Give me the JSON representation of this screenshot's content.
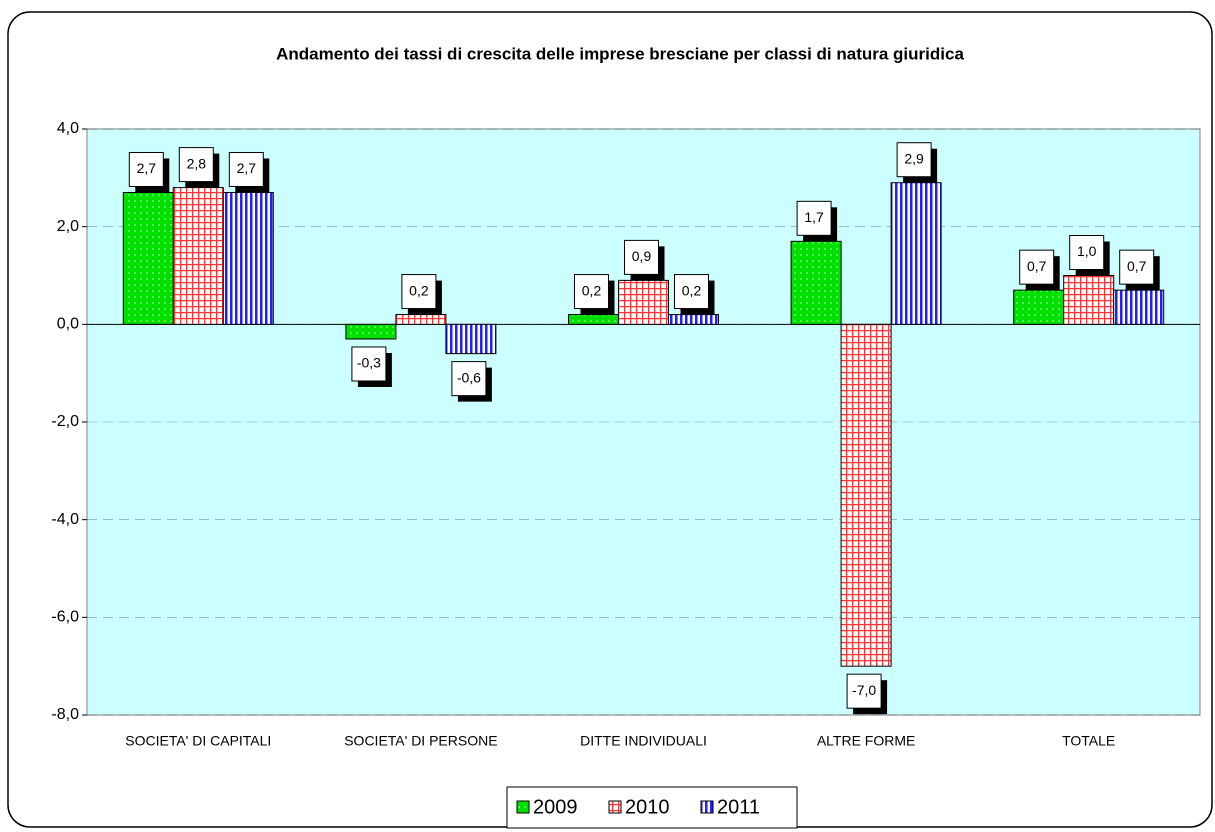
{
  "chart_data": {
    "type": "bar",
    "title": "Andamento dei tassi di crescita delle imprese bresciane per classi di natura giuridica",
    "categories": [
      "SOCIETA' DI CAPITALI",
      "SOCIETA' DI PERSONE",
      "DITTE INDIVIDUALI",
      "ALTRE FORME",
      "TOTALE"
    ],
    "series": [
      {
        "name": "2009",
        "color": "#00e000",
        "values": [
          2.7,
          -0.3,
          0.2,
          1.7,
          0.7
        ],
        "value_labels": [
          "2,7",
          "-0,3",
          "0,2",
          "1,7",
          "0,7"
        ]
      },
      {
        "name": "2010",
        "color": "#ff3333",
        "values": [
          2.8,
          0.2,
          0.9,
          -7.0,
          1.0
        ],
        "value_labels": [
          "2,8",
          "0,2",
          "0,9",
          "-7,0",
          "1,0"
        ]
      },
      {
        "name": "2011",
        "color": "#2020ff",
        "values": [
          2.7,
          -0.6,
          0.2,
          2.9,
          0.7
        ],
        "value_labels": [
          "2,7",
          "-0,6",
          "0,2",
          "2,9",
          "0,7"
        ]
      }
    ],
    "ylim": [
      -8,
      4
    ],
    "yticks": [
      {
        "value": -8,
        "label": "-8,0"
      },
      {
        "value": -6,
        "label": "-6,0"
      },
      {
        "value": -4,
        "label": "-4,0"
      },
      {
        "value": -2,
        "label": "-2,0"
      },
      {
        "value": 0,
        "label": "0,0"
      },
      {
        "value": 2,
        "label": "2,0"
      },
      {
        "value": 4,
        "label": "4,0"
      }
    ],
    "grid": true,
    "legend": "bottom"
  }
}
